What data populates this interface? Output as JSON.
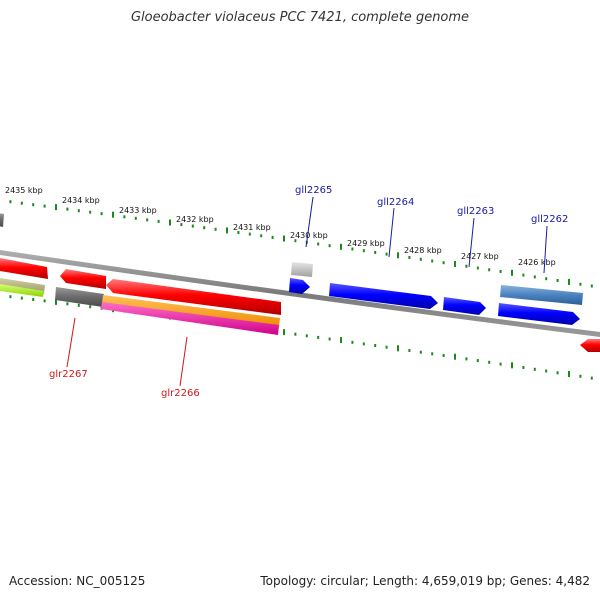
{
  "title": "Gloeobacter violaceus PCC 7421, complete genome",
  "accession": "Accession: NC_005125",
  "topology": "Topology: circular; Length: 4,659,019 bp; Genes: 4,482",
  "scale_labels": [
    "2435 kbp",
    "2434 kbp",
    "2433 kbp",
    "2432 kbp",
    "2431 kbp",
    "2430 kbp",
    "2429 kbp",
    "2428 kbp",
    "2427 kbp",
    "2426 kbp"
  ],
  "genes_forward": [
    "gll2265",
    "gll2264",
    "gll2263",
    "gll2262"
  ],
  "genes_reverse": [
    "glr2267",
    "glr2266"
  ],
  "colors": {
    "reverse_strand": "#ff0000",
    "forward_strand": "#0000ff",
    "tick": "#1a8a1a",
    "backbone": "#808080",
    "forward_label": "#1a1aa6",
    "reverse_label": "#cc1a1a"
  }
}
